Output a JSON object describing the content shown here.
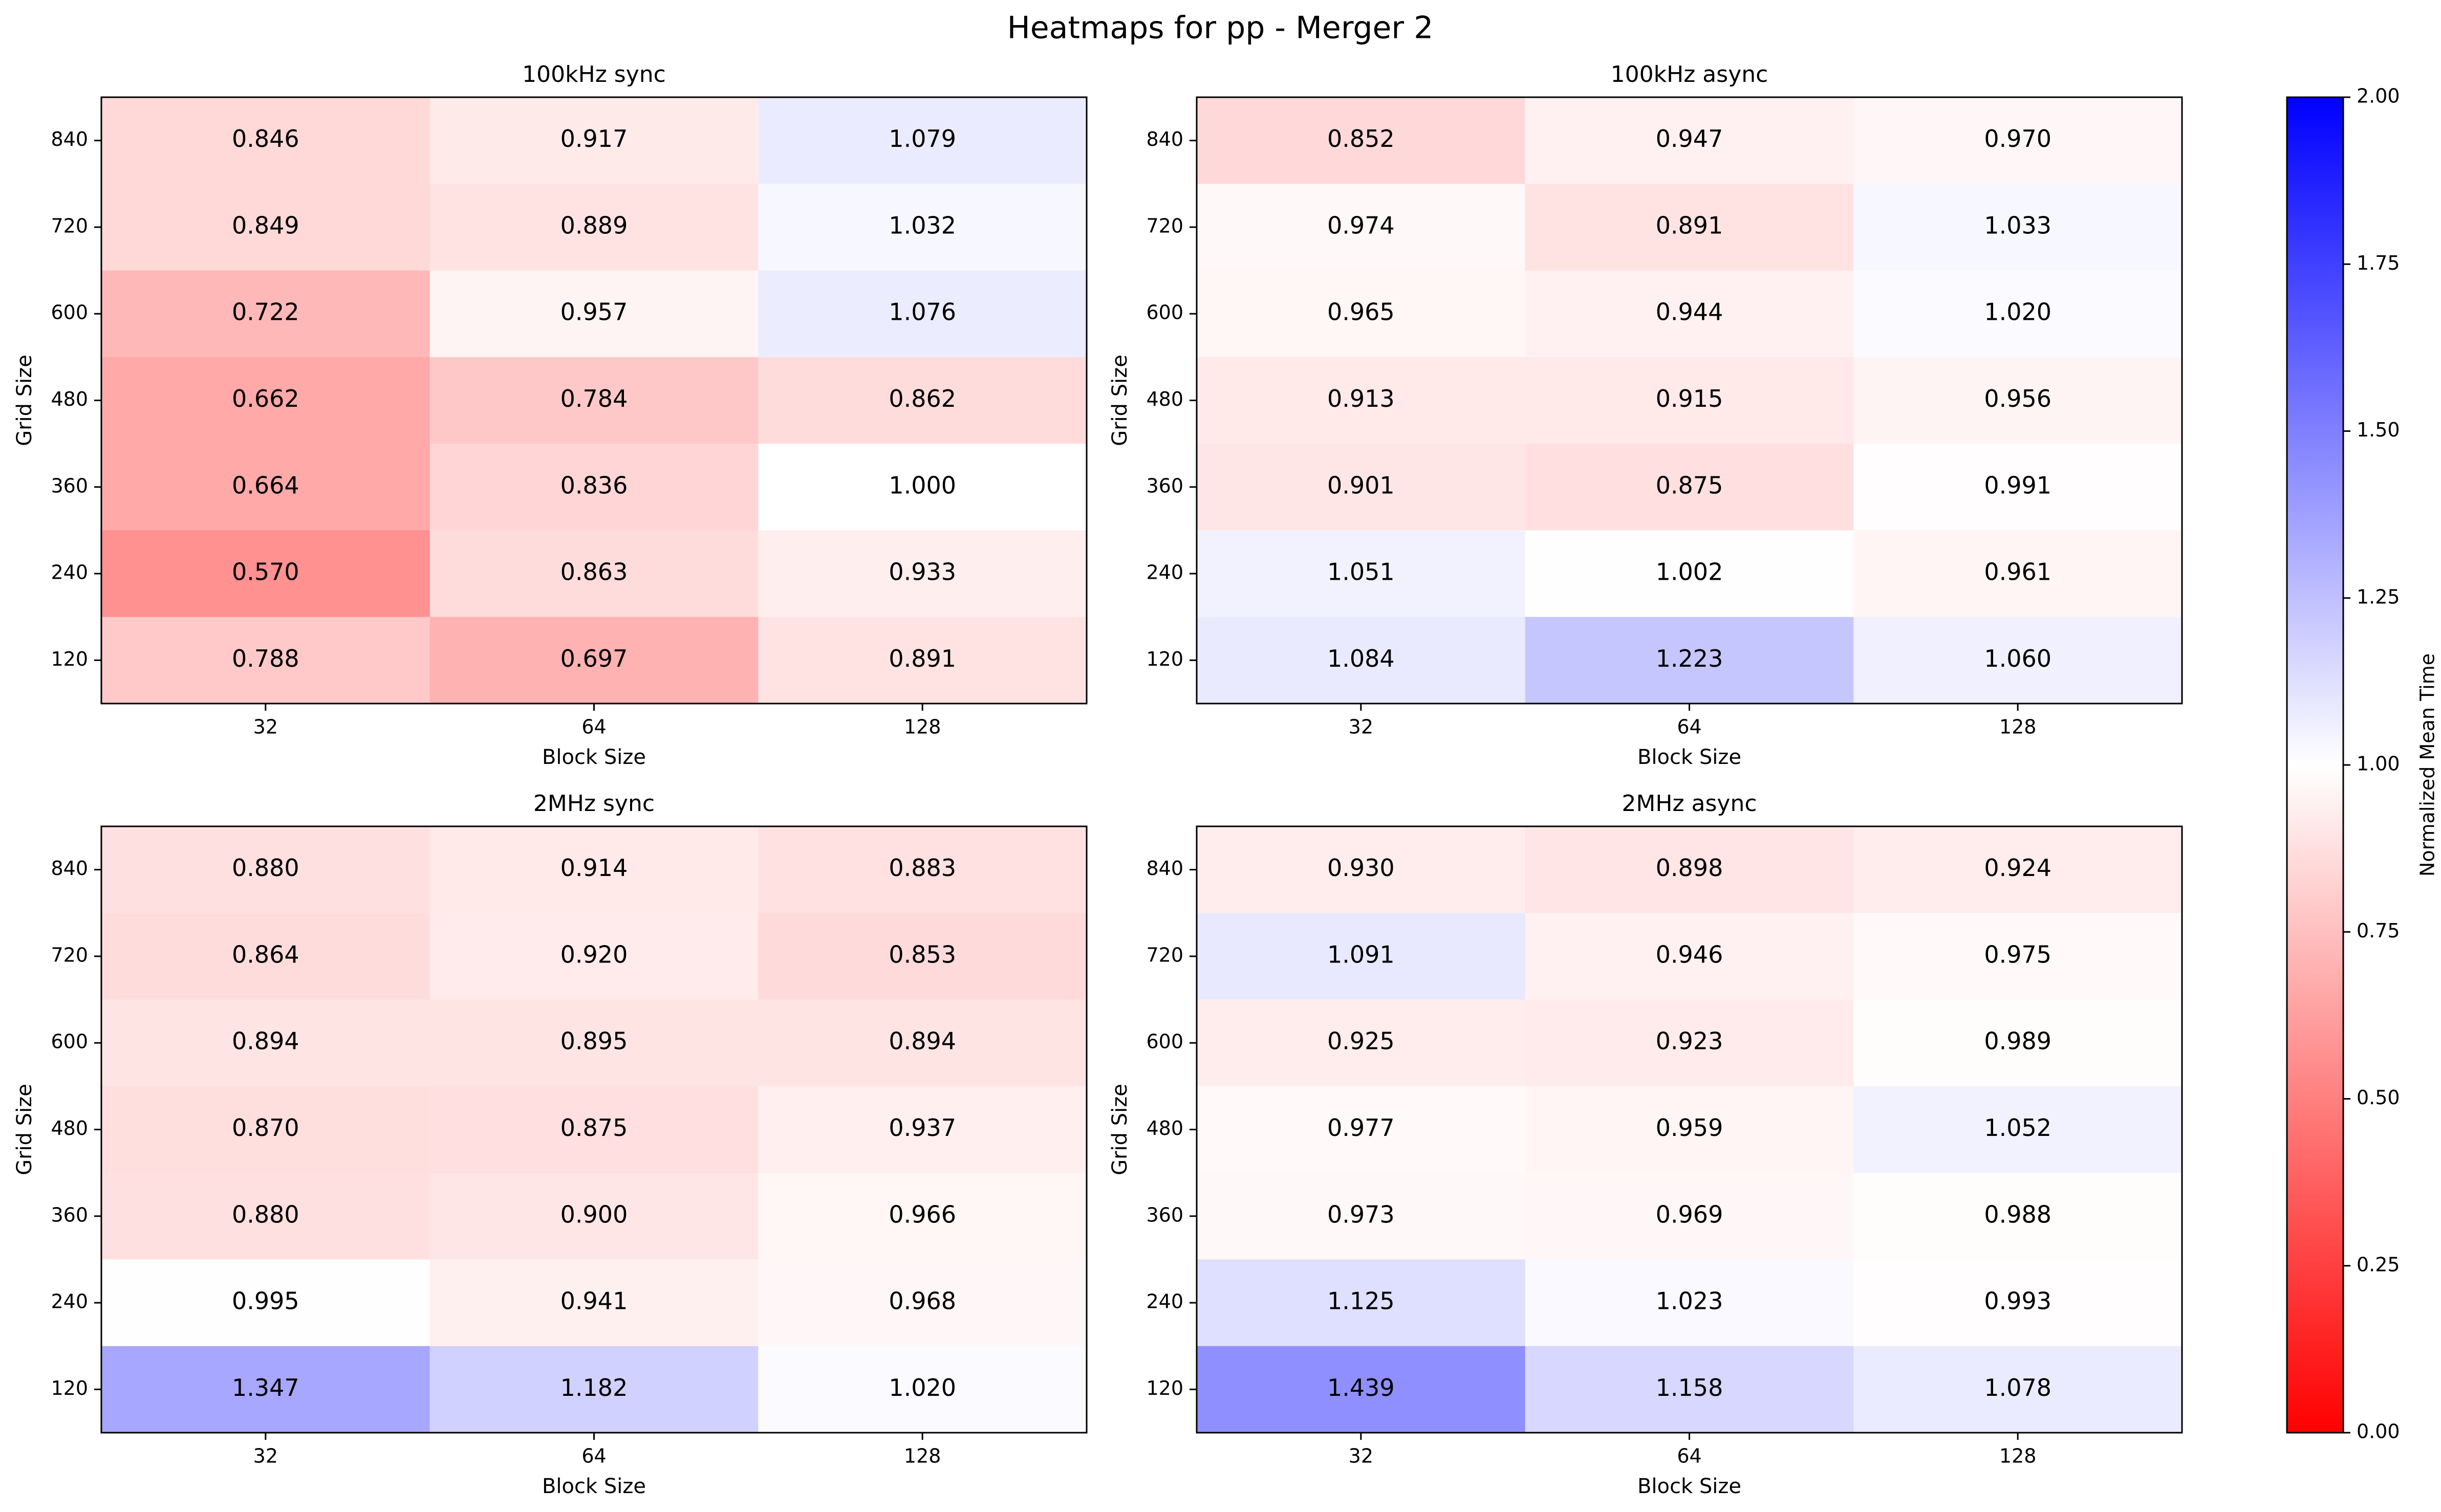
{
  "figure": {
    "title": "Heatmaps for pp - Merger 2"
  },
  "colorbar": {
    "label": "Normalized Mean Time",
    "vmin": 0.0,
    "vmax": 2.0,
    "ticks": [
      "0.00",
      "0.25",
      "0.50",
      "0.75",
      "1.00",
      "1.25",
      "1.50",
      "1.75",
      "2.00"
    ],
    "colors": {
      "low": "#ff0000",
      "mid": "#ffffff",
      "high": "#0000ff"
    }
  },
  "chart_data": [
    {
      "type": "heatmap",
      "title": "100kHz sync",
      "xlabel": "Block Size",
      "ylabel": "Grid Size",
      "x": [
        "32",
        "64",
        "128"
      ],
      "y": [
        "840",
        "720",
        "600",
        "480",
        "360",
        "240",
        "120"
      ],
      "values": [
        [
          0.846,
          0.917,
          1.079
        ],
        [
          0.849,
          0.889,
          1.032
        ],
        [
          0.722,
          0.957,
          1.076
        ],
        [
          0.662,
          0.784,
          0.862
        ],
        [
          0.664,
          0.836,
          1.0
        ],
        [
          0.57,
          0.863,
          0.933
        ],
        [
          0.788,
          0.697,
          0.891
        ]
      ]
    },
    {
      "type": "heatmap",
      "title": "100kHz async",
      "xlabel": "Block Size",
      "ylabel": "Grid Size",
      "x": [
        "32",
        "64",
        "128"
      ],
      "y": [
        "840",
        "720",
        "600",
        "480",
        "360",
        "240",
        "120"
      ],
      "values": [
        [
          0.852,
          0.947,
          0.97
        ],
        [
          0.974,
          0.891,
          1.033
        ],
        [
          0.965,
          0.944,
          1.02
        ],
        [
          0.913,
          0.915,
          0.956
        ],
        [
          0.901,
          0.875,
          0.991
        ],
        [
          1.051,
          1.002,
          0.961
        ],
        [
          1.084,
          1.223,
          1.06
        ]
      ]
    },
    {
      "type": "heatmap",
      "title": "2MHz sync",
      "xlabel": "Block Size",
      "ylabel": "Grid Size",
      "x": [
        "32",
        "64",
        "128"
      ],
      "y": [
        "840",
        "720",
        "600",
        "480",
        "360",
        "240",
        "120"
      ],
      "values": [
        [
          0.88,
          0.914,
          0.883
        ],
        [
          0.864,
          0.92,
          0.853
        ],
        [
          0.894,
          0.895,
          0.894
        ],
        [
          0.87,
          0.875,
          0.937
        ],
        [
          0.88,
          0.9,
          0.966
        ],
        [
          0.995,
          0.941,
          0.968
        ],
        [
          1.347,
          1.182,
          1.02
        ]
      ]
    },
    {
      "type": "heatmap",
      "title": "2MHz async",
      "xlabel": "Block Size",
      "ylabel": "Grid Size",
      "x": [
        "32",
        "64",
        "128"
      ],
      "y": [
        "840",
        "720",
        "600",
        "480",
        "360",
        "240",
        "120"
      ],
      "values": [
        [
          0.93,
          0.898,
          0.924
        ],
        [
          1.091,
          0.946,
          0.975
        ],
        [
          0.925,
          0.923,
          0.989
        ],
        [
          0.977,
          0.959,
          1.052
        ],
        [
          0.973,
          0.969,
          0.988
        ],
        [
          1.125,
          1.023,
          0.993
        ],
        [
          1.439,
          1.158,
          1.078
        ]
      ]
    }
  ]
}
